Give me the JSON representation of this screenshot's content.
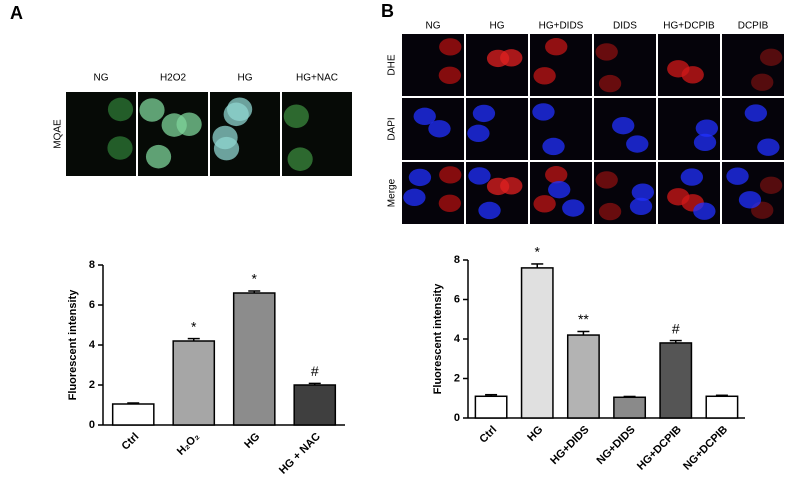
{
  "panel_labels": [
    "A",
    "B"
  ],
  "panel_a_images": {
    "columns": [
      "NG",
      "H2O2",
      "HG",
      "HG+NAC"
    ],
    "row": "MQAE"
  },
  "panel_b_images": {
    "columns": [
      "NG",
      "HG",
      "HG+DIDS",
      "DIDS",
      "HG+DCPIB",
      "DCPIB"
    ],
    "rows": [
      "DHE",
      "DAPI",
      "Merge"
    ]
  },
  "chart_data": [
    {
      "type": "bar",
      "ylabel": "Fluorescent intensity",
      "categories": [
        "Ctrl",
        "H₂O₂",
        "HG",
        "HG + NAC"
      ],
      "values": [
        1.05,
        4.2,
        6.6,
        2.0
      ],
      "errors": [
        0.05,
        0.12,
        0.1,
        0.08
      ],
      "annotations": [
        null,
        "*",
        "*",
        "#"
      ],
      "colors": [
        "#ffffff",
        "#a6a6a6",
        "#8c8c8c",
        "#3f3f3f"
      ],
      "ylim": [
        0,
        8
      ],
      "yticks": [
        0,
        2,
        4,
        6,
        8
      ]
    },
    {
      "type": "bar",
      "ylabel": "Fluorescent intensity",
      "categories": [
        "Ctrl",
        "HG",
        "HG+DIDS",
        "NG+DIDS",
        "HG+DCPIB",
        "NG+DCPIB"
      ],
      "values": [
        1.1,
        7.6,
        4.2,
        1.05,
        3.8,
        1.1
      ],
      "errors": [
        0.08,
        0.2,
        0.18,
        0.04,
        0.12,
        0.05
      ],
      "annotations": [
        null,
        "*",
        "**",
        null,
        "#",
        null
      ],
      "colors": [
        "#ffffff",
        "#e0e0e0",
        "#b3b3b3",
        "#8a8a8a",
        "#555555",
        "#ffffff"
      ],
      "ylim": [
        0,
        8
      ],
      "yticks": [
        0,
        2,
        4,
        6,
        8
      ]
    }
  ]
}
